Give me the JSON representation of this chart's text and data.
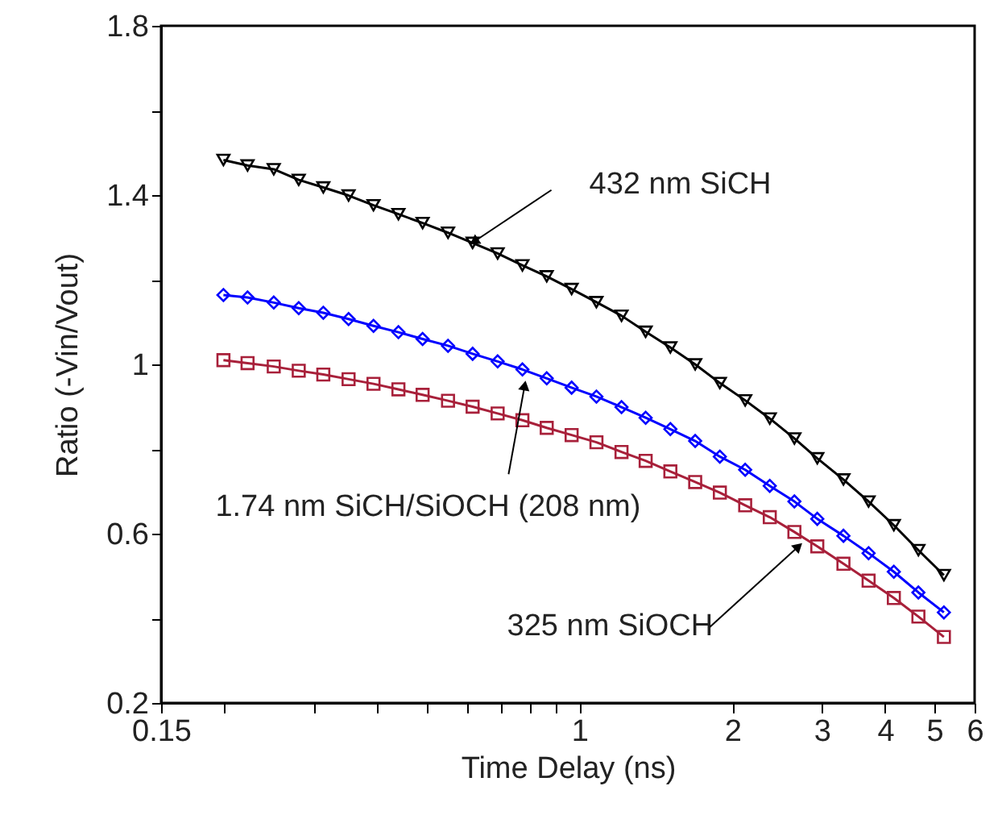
{
  "chart_data": {
    "type": "line",
    "xlabel": "Time Delay (ns)",
    "ylabel": "Ratio (-Vin/Vout)",
    "log": "x",
    "grid": false,
    "line_style": "solid",
    "xlim": [
      0.15,
      6
    ],
    "ylim": [
      0.2,
      1.8
    ],
    "xticks": [
      0.15,
      {
        "value": 0.2,
        "label": null
      },
      {
        "value": 0.3,
        "label": null
      },
      {
        "value": 0.4,
        "label": null
      },
      {
        "value": 0.5,
        "label": null
      },
      {
        "value": 0.6,
        "label": null
      },
      {
        "value": 0.7,
        "label": null
      },
      {
        "value": 0.8,
        "label": null
      },
      {
        "value": 0.9,
        "label": null
      },
      1,
      2,
      3,
      4,
      5,
      6
    ],
    "yticks": [
      0.2,
      {
        "value": 0.4,
        "label": null
      },
      0.6,
      {
        "value": 0.8,
        "label": null
      },
      1,
      {
        "value": 1.2,
        "label": null
      },
      1.4,
      {
        "value": 1.6,
        "label": null
      },
      1.8
    ],
    "x": [
      0.199,
      0.222,
      0.25,
      0.28,
      0.313,
      0.351,
      0.393,
      0.44,
      0.491,
      0.551,
      0.616,
      0.69,
      0.772,
      0.862,
      0.965,
      1.08,
      1.21,
      1.35,
      1.51,
      1.69,
      1.89,
      2.12,
      2.37,
      2.65,
      2.94,
      3.31,
      3.71,
      4.16,
      4.65,
      5.22
    ],
    "series": [
      {
        "color": "#000000",
        "marker": "triangle",
        "values": [
          1.483,
          1.47,
          1.461,
          1.436,
          1.418,
          1.399,
          1.376,
          1.355,
          1.334,
          1.311,
          1.287,
          1.262,
          1.234,
          1.208,
          1.178,
          1.147,
          1.115,
          1.077,
          1.04,
          1.0,
          0.956,
          0.915,
          0.872,
          0.825,
          0.778,
          0.728,
          0.676,
          0.62,
          0.561,
          0.502
        ]
      },
      {
        "color": "#0000ff",
        "marker": "diamond",
        "values": [
          1.164,
          1.158,
          1.146,
          1.133,
          1.122,
          1.107,
          1.091,
          1.076,
          1.06,
          1.044,
          1.025,
          1.007,
          0.988,
          0.967,
          0.945,
          0.924,
          0.899,
          0.874,
          0.847,
          0.819,
          0.782,
          0.751,
          0.713,
          0.676,
          0.635,
          0.595,
          0.554,
          0.51,
          0.461,
          0.414
        ]
      },
      {
        "color": "#a8203a",
        "marker": "square",
        "values": [
          1.01,
          1.003,
          0.995,
          0.985,
          0.976,
          0.965,
          0.954,
          0.941,
          0.928,
          0.914,
          0.9,
          0.884,
          0.868,
          0.85,
          0.833,
          0.816,
          0.793,
          0.772,
          0.747,
          0.722,
          0.697,
          0.667,
          0.639,
          0.604,
          0.57,
          0.529,
          0.489,
          0.448,
          0.404,
          0.356
        ]
      }
    ],
    "annotations": [
      {
        "text": "432 nm SiCH",
        "x": 0.62,
        "y": 1.29
      },
      {
        "text": "1.74 nm SiCH/SiOCH (208 nm)",
        "x": 0.78,
        "y": 0.95
      },
      {
        "text": "325 nm SiOCH",
        "x": 2.7,
        "y": 0.57
      }
    ]
  }
}
